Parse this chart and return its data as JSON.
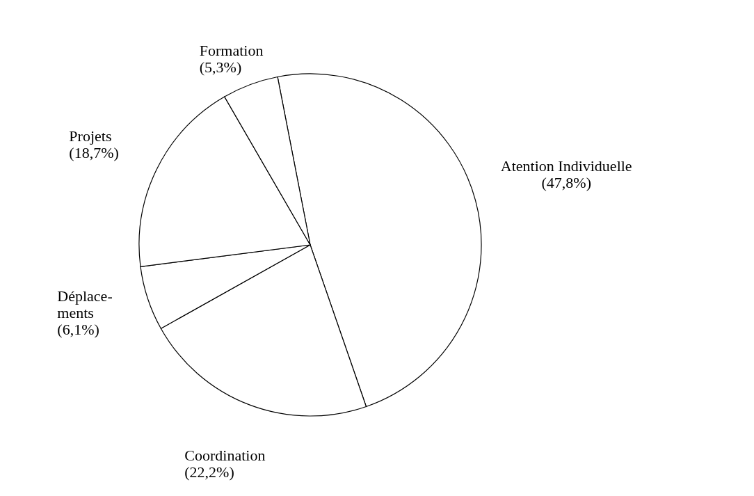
{
  "chart_data": {
    "type": "pie",
    "categories": [
      "Atention Individuelle",
      "Coordination",
      "Déplace-\nments",
      "Projets",
      "Formation"
    ],
    "values": [
      47.8,
      22.2,
      6.1,
      18.7,
      5.3
    ],
    "colors": [
      "#ffffff",
      "#ffffff",
      "#ffffff",
      "#ffffff",
      "#ffffff"
    ],
    "value_labels": [
      "(47,8%)",
      "(22,2%)",
      "(6,1%)",
      "(18,7%)",
      "(5,3%)"
    ]
  }
}
